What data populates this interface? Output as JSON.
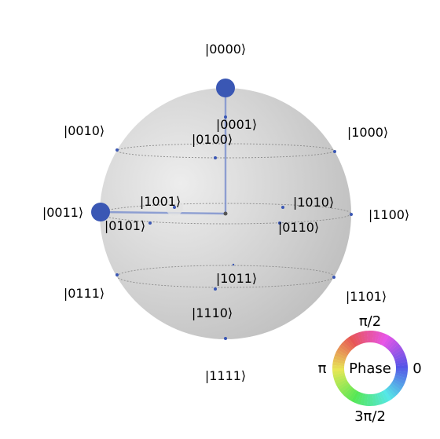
{
  "sphere": {
    "basis_states": [
      {
        "id": "s0000",
        "label": "|0000⟩",
        "magnitude": 1.0,
        "probability": 0.5,
        "phase_deg": 0
      },
      {
        "id": "s0001",
        "label": "|0001⟩",
        "magnitude": 0.0,
        "probability": 0.0,
        "phase_deg": 0
      },
      {
        "id": "s0010",
        "label": "|0010⟩",
        "magnitude": 0.0,
        "probability": 0.0,
        "phase_deg": 0
      },
      {
        "id": "s0011",
        "label": "|0011⟩",
        "magnitude": 1.0,
        "probability": 0.5,
        "phase_deg": 0
      },
      {
        "id": "s0100",
        "label": "|0100⟩",
        "magnitude": 0.0,
        "probability": 0.0,
        "phase_deg": 0
      },
      {
        "id": "s0101",
        "label": "|0101⟩",
        "magnitude": 0.0,
        "probability": 0.0,
        "phase_deg": 0
      },
      {
        "id": "s0110",
        "label": "|0110⟩",
        "magnitude": 0.0,
        "probability": 0.0,
        "phase_deg": 0
      },
      {
        "id": "s0111",
        "label": "|0111⟩",
        "magnitude": 0.0,
        "probability": 0.0,
        "phase_deg": 0
      },
      {
        "id": "s1000",
        "label": "|1000⟩",
        "magnitude": 0.0,
        "probability": 0.0,
        "phase_deg": 0
      },
      {
        "id": "s1001",
        "label": "|1001⟩",
        "magnitude": 0.0,
        "probability": 0.0,
        "phase_deg": 0
      },
      {
        "id": "s1010",
        "label": "|1010⟩",
        "magnitude": 0.0,
        "probability": 0.0,
        "phase_deg": 0
      },
      {
        "id": "s1011",
        "label": "|1011⟩",
        "magnitude": 0.0,
        "probability": 0.0,
        "phase_deg": 0
      },
      {
        "id": "s1100",
        "label": "|1100⟩",
        "magnitude": 0.0,
        "probability": 0.0,
        "phase_deg": 0
      },
      {
        "id": "s1101",
        "label": "|1101⟩",
        "magnitude": 0.0,
        "probability": 0.0,
        "phase_deg": 0
      },
      {
        "id": "s1110",
        "label": "|1110⟩",
        "magnitude": 0.0,
        "probability": 0.0,
        "phase_deg": 0
      },
      {
        "id": "s1111",
        "label": "|1111⟩",
        "magnitude": 0.0,
        "probability": 0.0,
        "phase_deg": 0
      }
    ]
  },
  "phase_legend": {
    "title": "Phase",
    "label_top": "π/2",
    "label_left": "π",
    "label_right": "0",
    "label_bottom": "3π/2"
  },
  "colors": {
    "state_fill": "#3a57b4",
    "state_line": "#7f93cf",
    "sphere_light": "#eeeeee",
    "sphere_dark": "#b9b9b9",
    "latitude_line": "#8c8c8c"
  }
}
